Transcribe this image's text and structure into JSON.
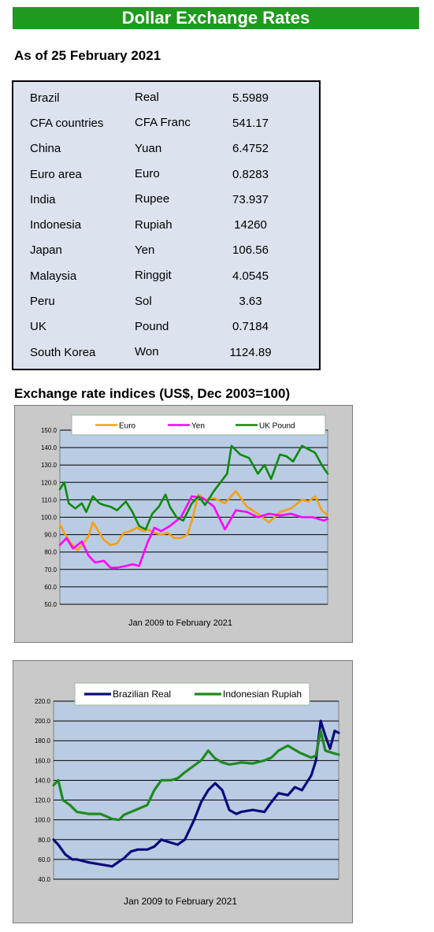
{
  "banner_title": "Dollar Exchange Rates",
  "as_of": "As of 25 February 2021",
  "rates": [
    {
      "country": "Brazil",
      "currency": "Real",
      "value": "5.5989"
    },
    {
      "country": "CFA countries",
      "currency": "CFA Franc",
      "value": "541.17"
    },
    {
      "country": "China",
      "currency": "Yuan",
      "value": "6.4752"
    },
    {
      "country": "Euro area",
      "currency": "Euro",
      "value": "0.8283"
    },
    {
      "country": "India",
      "currency": "Rupee",
      "value": "73.937"
    },
    {
      "country": "Indonesia",
      "currency": "Rupiah",
      "value": "14260"
    },
    {
      "country": "Japan",
      "currency": "Yen",
      "value": "106.56"
    },
    {
      "country": "Malaysia",
      "currency": "Ringgit",
      "value": "4.0545"
    },
    {
      "country": "Peru",
      "currency": "Sol",
      "value": "3.63"
    },
    {
      "country": "UK",
      "currency": "Pound",
      "value": "0.7184"
    },
    {
      "country": "South Korea",
      "currency": "Won",
      "value": "1124.89"
    }
  ],
  "indices_heading": "Exchange rate indices (US$, Dec 2003=100)",
  "colors": {
    "euro": "#f5a010",
    "yen": "#ff00ff",
    "uk_pound": "#0e8a0e",
    "brazilian_real": "#0a0a7a",
    "indonesian_rupiah": "#1f8a1f",
    "plot_bg": "#b9cce4",
    "frame_bg": "#c9c9c9"
  },
  "chart_data": [
    {
      "type": "line",
      "xlabel": "Jan 2009  to February 2021",
      "ylim": [
        50,
        150
      ],
      "yticks": [
        "150.0",
        "140.0",
        "130.0",
        "120.0",
        "110.0",
        "100.0",
        "90.0",
        "80.0",
        "70.0",
        "60.0",
        "50.0"
      ],
      "grid": true,
      "legend_position": "top",
      "x_start": 2009.0,
      "x_end": 2021.17,
      "series": [
        {
          "name": "Euro",
          "color": "#f5a010",
          "x": [
            2009.0,
            2009.2,
            2009.5,
            2009.8,
            2010.0,
            2010.3,
            2010.5,
            2010.8,
            2011.0,
            2011.3,
            2011.6,
            2011.9,
            2012.2,
            2012.5,
            2012.8,
            2013.0,
            2013.3,
            2013.6,
            2013.9,
            2014.2,
            2014.5,
            2014.8,
            2015.0,
            2015.3,
            2015.6,
            2016.0,
            2016.5,
            2017.0,
            2017.5,
            2018.0,
            2018.5,
            2019.0,
            2019.5,
            2020.0,
            2020.3,
            2020.6,
            2020.9,
            2021.17
          ],
          "values": [
            96,
            91,
            85,
            81,
            84,
            89,
            97,
            91,
            87,
            84,
            85,
            91,
            92,
            94,
            92,
            93,
            91,
            90,
            91,
            88,
            88,
            90,
            98,
            113,
            110,
            111,
            108,
            115,
            106,
            102,
            97,
            103,
            105,
            110,
            109,
            112,
            104,
            101
          ]
        },
        {
          "name": "Yen",
          "color": "#ff00ff",
          "x": [
            2009.0,
            2009.3,
            2009.6,
            2010.0,
            2010.3,
            2010.6,
            2011.0,
            2011.3,
            2011.6,
            2012.0,
            2012.3,
            2012.6,
            2013.0,
            2013.3,
            2013.6,
            2014.0,
            2014.5,
            2015.0,
            2015.5,
            2016.0,
            2016.5,
            2017.0,
            2017.5,
            2018.0,
            2018.5,
            2019.0,
            2019.5,
            2020.0,
            2020.5,
            2021.0,
            2021.17
          ],
          "values": [
            84,
            88,
            82,
            86,
            78,
            74,
            75,
            71,
            71,
            72,
            73,
            72,
            86,
            94,
            92,
            95,
            100,
            112,
            111,
            106,
            93,
            104,
            103,
            100,
            102,
            101,
            102,
            100,
            100,
            98,
            99
          ]
        },
        {
          "name": "UK Pound",
          "color": "#0e8a0e",
          "x": [
            2009.0,
            2009.2,
            2009.4,
            2009.7,
            2010.0,
            2010.2,
            2010.5,
            2010.8,
            2011.0,
            2011.3,
            2011.6,
            2012.0,
            2012.3,
            2012.6,
            2012.9,
            2013.2,
            2013.5,
            2013.8,
            2014.0,
            2014.3,
            2014.6,
            2015.0,
            2015.3,
            2015.6,
            2016.0,
            2016.3,
            2016.6,
            2016.8,
            2017.2,
            2017.6,
            2018.0,
            2018.3,
            2018.6,
            2019.0,
            2019.3,
            2019.6,
            2020.0,
            2020.3,
            2020.6,
            2020.9,
            2021.17
          ],
          "values": [
            116,
            120,
            108,
            105,
            108,
            103,
            112,
            108,
            107,
            106,
            104,
            109,
            103,
            95,
            93,
            102,
            106,
            113,
            106,
            100,
            98,
            108,
            112,
            107,
            115,
            120,
            125,
            141,
            136,
            134,
            125,
            130,
            122,
            136,
            135,
            132,
            141,
            139,
            137,
            130,
            125
          ]
        }
      ]
    },
    {
      "type": "line",
      "xlabel": "Jan 2009  to February 2021",
      "ylim": [
        40,
        220
      ],
      "yticks": [
        "220.0",
        "200.0",
        "180.0",
        "160.0",
        "140.0",
        "120.0",
        "100.0",
        "80.0",
        "60.0",
        "40.0"
      ],
      "grid": true,
      "legend_position": "top",
      "x_start": 2009.0,
      "x_end": 2021.17,
      "series": [
        {
          "name": "Brazilian Real",
          "color": "#0a0a7a",
          "x": [
            2009.0,
            2009.2,
            2009.5,
            2009.8,
            2010.0,
            2010.5,
            2011.0,
            2011.5,
            2011.8,
            2012.0,
            2012.3,
            2012.6,
            2013.0,
            2013.3,
            2013.6,
            2014.0,
            2014.3,
            2014.6,
            2015.0,
            2015.3,
            2015.6,
            2015.9,
            2016.2,
            2016.5,
            2016.8,
            2017.0,
            2017.5,
            2018.0,
            2018.3,
            2018.6,
            2019.0,
            2019.3,
            2019.6,
            2020.0,
            2020.2,
            2020.4,
            2020.6,
            2020.8,
            2021.0,
            2021.17
          ],
          "values": [
            80,
            75,
            65,
            60,
            60,
            57,
            55,
            53,
            58,
            61,
            68,
            70,
            70,
            73,
            80,
            77,
            75,
            80,
            100,
            118,
            130,
            137,
            130,
            110,
            106,
            108,
            110,
            108,
            118,
            127,
            125,
            133,
            130,
            145,
            160,
            200,
            185,
            172,
            190,
            188
          ]
        },
        {
          "name": "Indonesian Rupiah",
          "color": "#1f8a1f",
          "x": [
            2009.0,
            2009.2,
            2009.4,
            2009.7,
            2010.0,
            2010.5,
            2011.0,
            2011.5,
            2011.8,
            2012.0,
            2012.5,
            2013.0,
            2013.3,
            2013.6,
            2014.0,
            2014.3,
            2014.6,
            2015.0,
            2015.3,
            2015.6,
            2015.9,
            2016.2,
            2016.5,
            2016.8,
            2017.0,
            2017.5,
            2018.0,
            2018.3,
            2018.6,
            2019.0,
            2019.5,
            2020.0,
            2020.2,
            2020.4,
            2020.6,
            2021.0,
            2021.17
          ],
          "values": [
            135,
            140,
            120,
            115,
            108,
            106,
            106,
            101,
            100,
            105,
            110,
            115,
            130,
            140,
            140,
            142,
            148,
            155,
            160,
            170,
            162,
            158,
            156,
            157,
            158,
            157,
            160,
            163,
            170,
            175,
            168,
            163,
            165,
            190,
            170,
            167,
            166
          ]
        }
      ]
    }
  ]
}
